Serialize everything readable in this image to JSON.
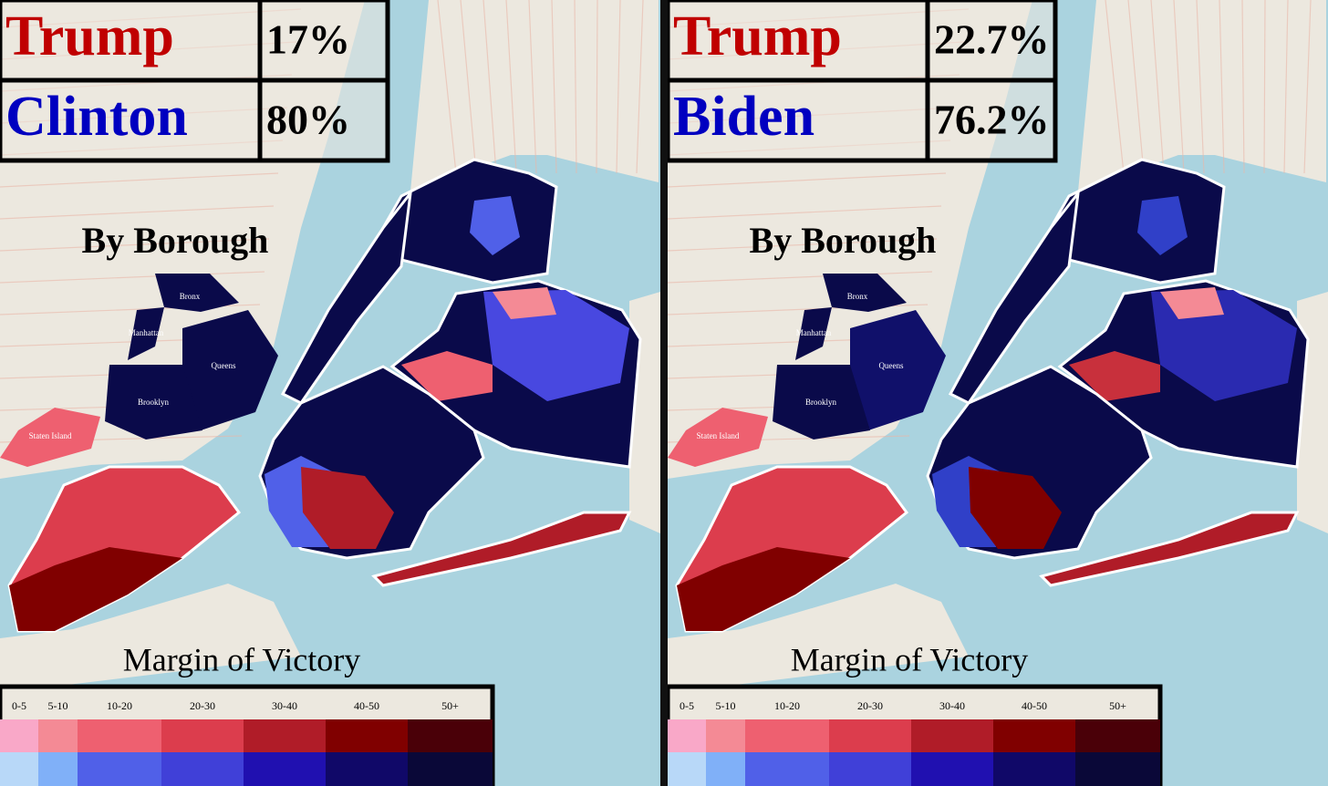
{
  "panels": [
    {
      "results": [
        {
          "candidate": "Trump",
          "share": "17%"
        },
        {
          "candidate": "Clinton",
          "share": "80%"
        }
      ],
      "inset_title": "By Borough",
      "inset_labels": [
        "Bronx",
        "Manhattan",
        "Queens",
        "Brooklyn",
        "Staten Island"
      ],
      "legend": {
        "title": "Margin of Victory",
        "bins": [
          "0-5",
          "5-10",
          "10-20",
          "20-30",
          "30-40",
          "40-50",
          "50+"
        ]
      }
    },
    {
      "results": [
        {
          "candidate": "Trump",
          "share": "22.7%"
        },
        {
          "candidate": "Biden",
          "share": "76.2%"
        }
      ],
      "inset_title": "By Borough",
      "inset_labels": [
        "Bronx",
        "Manhattan",
        "Queens",
        "Brooklyn",
        "Staten Island"
      ],
      "legend": {
        "title": "Margin of Victory",
        "bins": [
          "0-5",
          "5-10",
          "10-20",
          "20-30",
          "30-40",
          "40-50",
          "50+"
        ]
      }
    }
  ]
}
